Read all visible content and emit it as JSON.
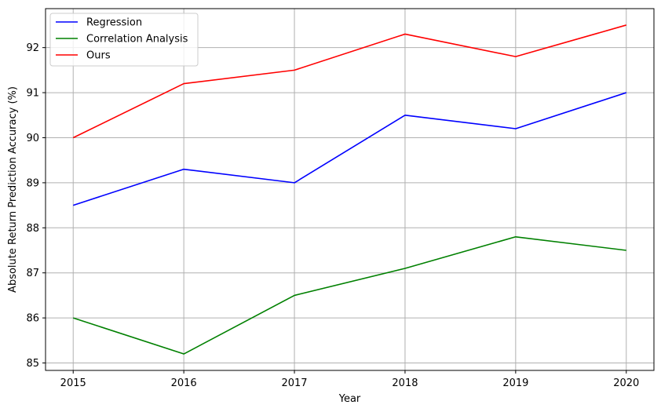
{
  "chart_data": {
    "type": "line",
    "title": "",
    "xlabel": "Year",
    "ylabel": "Absolute Return Prediction Accuracy (%)",
    "x": [
      2015,
      2016,
      2017,
      2018,
      2019,
      2020
    ],
    "x_tick_labels": [
      "2015",
      "2016",
      "2017",
      "2018",
      "2019",
      "2020"
    ],
    "xlim": [
      2014.75,
      2020.25
    ],
    "ylim": [
      84.835,
      92.865
    ],
    "y_ticks": [
      85,
      86,
      87,
      88,
      89,
      90,
      91,
      92
    ],
    "y_tick_labels": [
      "85",
      "86",
      "87",
      "88",
      "89",
      "90",
      "91",
      "92"
    ],
    "grid": true,
    "legend_position": "upper-left",
    "series": [
      {
        "name": "Regression",
        "color": "#0000ff",
        "values": [
          88.5,
          89.3,
          89.0,
          90.5,
          90.2,
          91.0
        ]
      },
      {
        "name": "Correlation Analysis",
        "color": "#008000",
        "values": [
          86.0,
          85.2,
          86.5,
          87.1,
          87.8,
          87.5
        ]
      },
      {
        "name": "Ours",
        "color": "#ff0000",
        "values": [
          90.0,
          91.2,
          91.5,
          92.3,
          91.8,
          92.5
        ]
      }
    ]
  }
}
